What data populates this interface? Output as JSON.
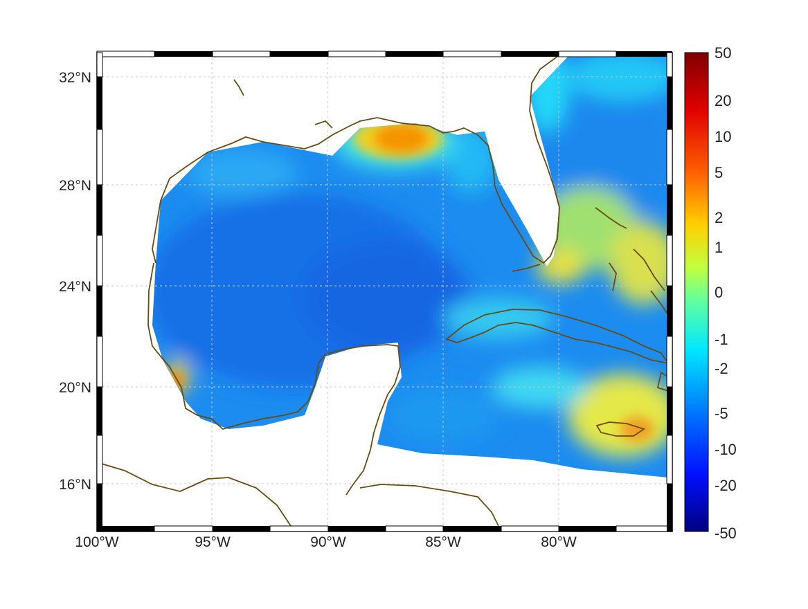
{
  "map": {
    "latitude_labels": [
      "32°N",
      "28°N",
      "24°N",
      "20°N",
      "16°N"
    ],
    "longitude_labels": [
      "100°W",
      "95°W",
      "90°W",
      "85°W",
      "80°W"
    ],
    "grid": "on",
    "region": "Gulf of Mexico and Caribbean",
    "coastline_color": "#6b4a10",
    "colorscale": "jet"
  },
  "colorbar": {
    "tick_labels": [
      "50",
      "20",
      "10",
      "5",
      "2",
      "1",
      "0",
      "-1",
      "-2",
      "-5",
      "-10",
      "-20",
      "-50"
    ],
    "range": [
      -50,
      50
    ],
    "scale": "symmetric-log"
  }
}
